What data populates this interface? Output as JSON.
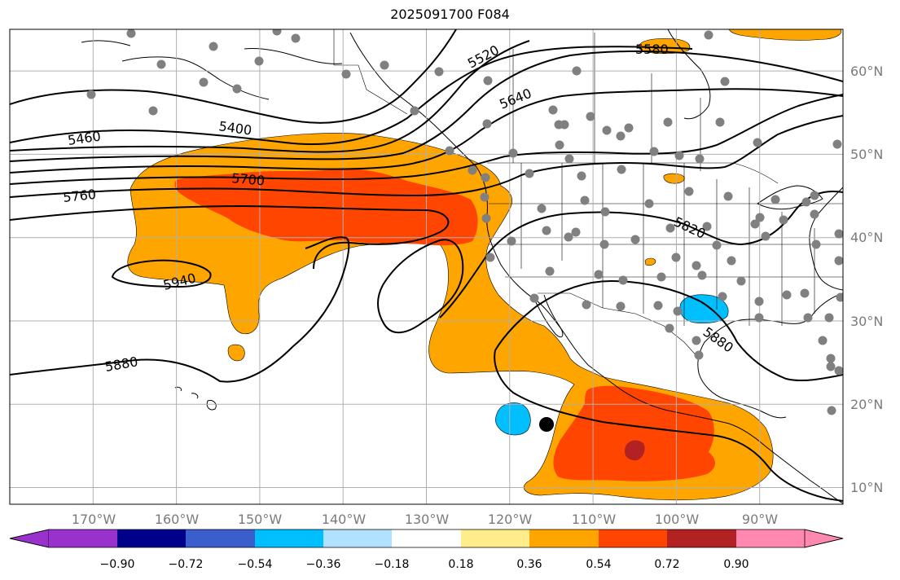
{
  "title": "2025091700 F084",
  "map": {
    "lon_range": [
      -180,
      -80
    ],
    "lat_range": [
      8,
      65
    ],
    "lon_ticks": [
      {
        "value": -170,
        "label": "170°W"
      },
      {
        "value": -160,
        "label": "160°W"
      },
      {
        "value": -150,
        "label": "150°W"
      },
      {
        "value": -140,
        "label": "140°W"
      },
      {
        "value": -130,
        "label": "130°W"
      },
      {
        "value": -120,
        "label": "120°W"
      },
      {
        "value": -110,
        "label": "110°W"
      },
      {
        "value": -100,
        "label": "100°W"
      },
      {
        "value": -90,
        "label": "90°W"
      }
    ],
    "lat_ticks": [
      {
        "value": 10,
        "label": "10°N"
      },
      {
        "value": 20,
        "label": "20°N"
      },
      {
        "value": 30,
        "label": "30°N"
      },
      {
        "value": 40,
        "label": "40°N"
      },
      {
        "value": 50,
        "label": "50°N"
      },
      {
        "value": 60,
        "label": "60°N"
      }
    ],
    "contour_labels": [
      "5400",
      "5460",
      "5520",
      "5580",
      "5640",
      "5700",
      "5760",
      "5820",
      "5880",
      "5940"
    ],
    "colors": {
      "orange": "#ffa500",
      "red_orange": "#ff4500",
      "dark_red": "#b22222",
      "cyan": "#00bfff",
      "station": "#808080",
      "marker": "#000000"
    }
  },
  "colorbar": {
    "colors": [
      "#9932cc",
      "#00008b",
      "#3a5fcd",
      "#00bfff",
      "#b0e2ff",
      "#ffffff",
      "#ffec8b",
      "#ffa500",
      "#ff4500",
      "#b22222",
      "#ff88b0"
    ],
    "labels": [
      "−0.90",
      "−0.72",
      "−0.54",
      "−0.36",
      "−0.18",
      "0.18",
      "0.36",
      "0.54",
      "0.72",
      "0.90"
    ]
  }
}
